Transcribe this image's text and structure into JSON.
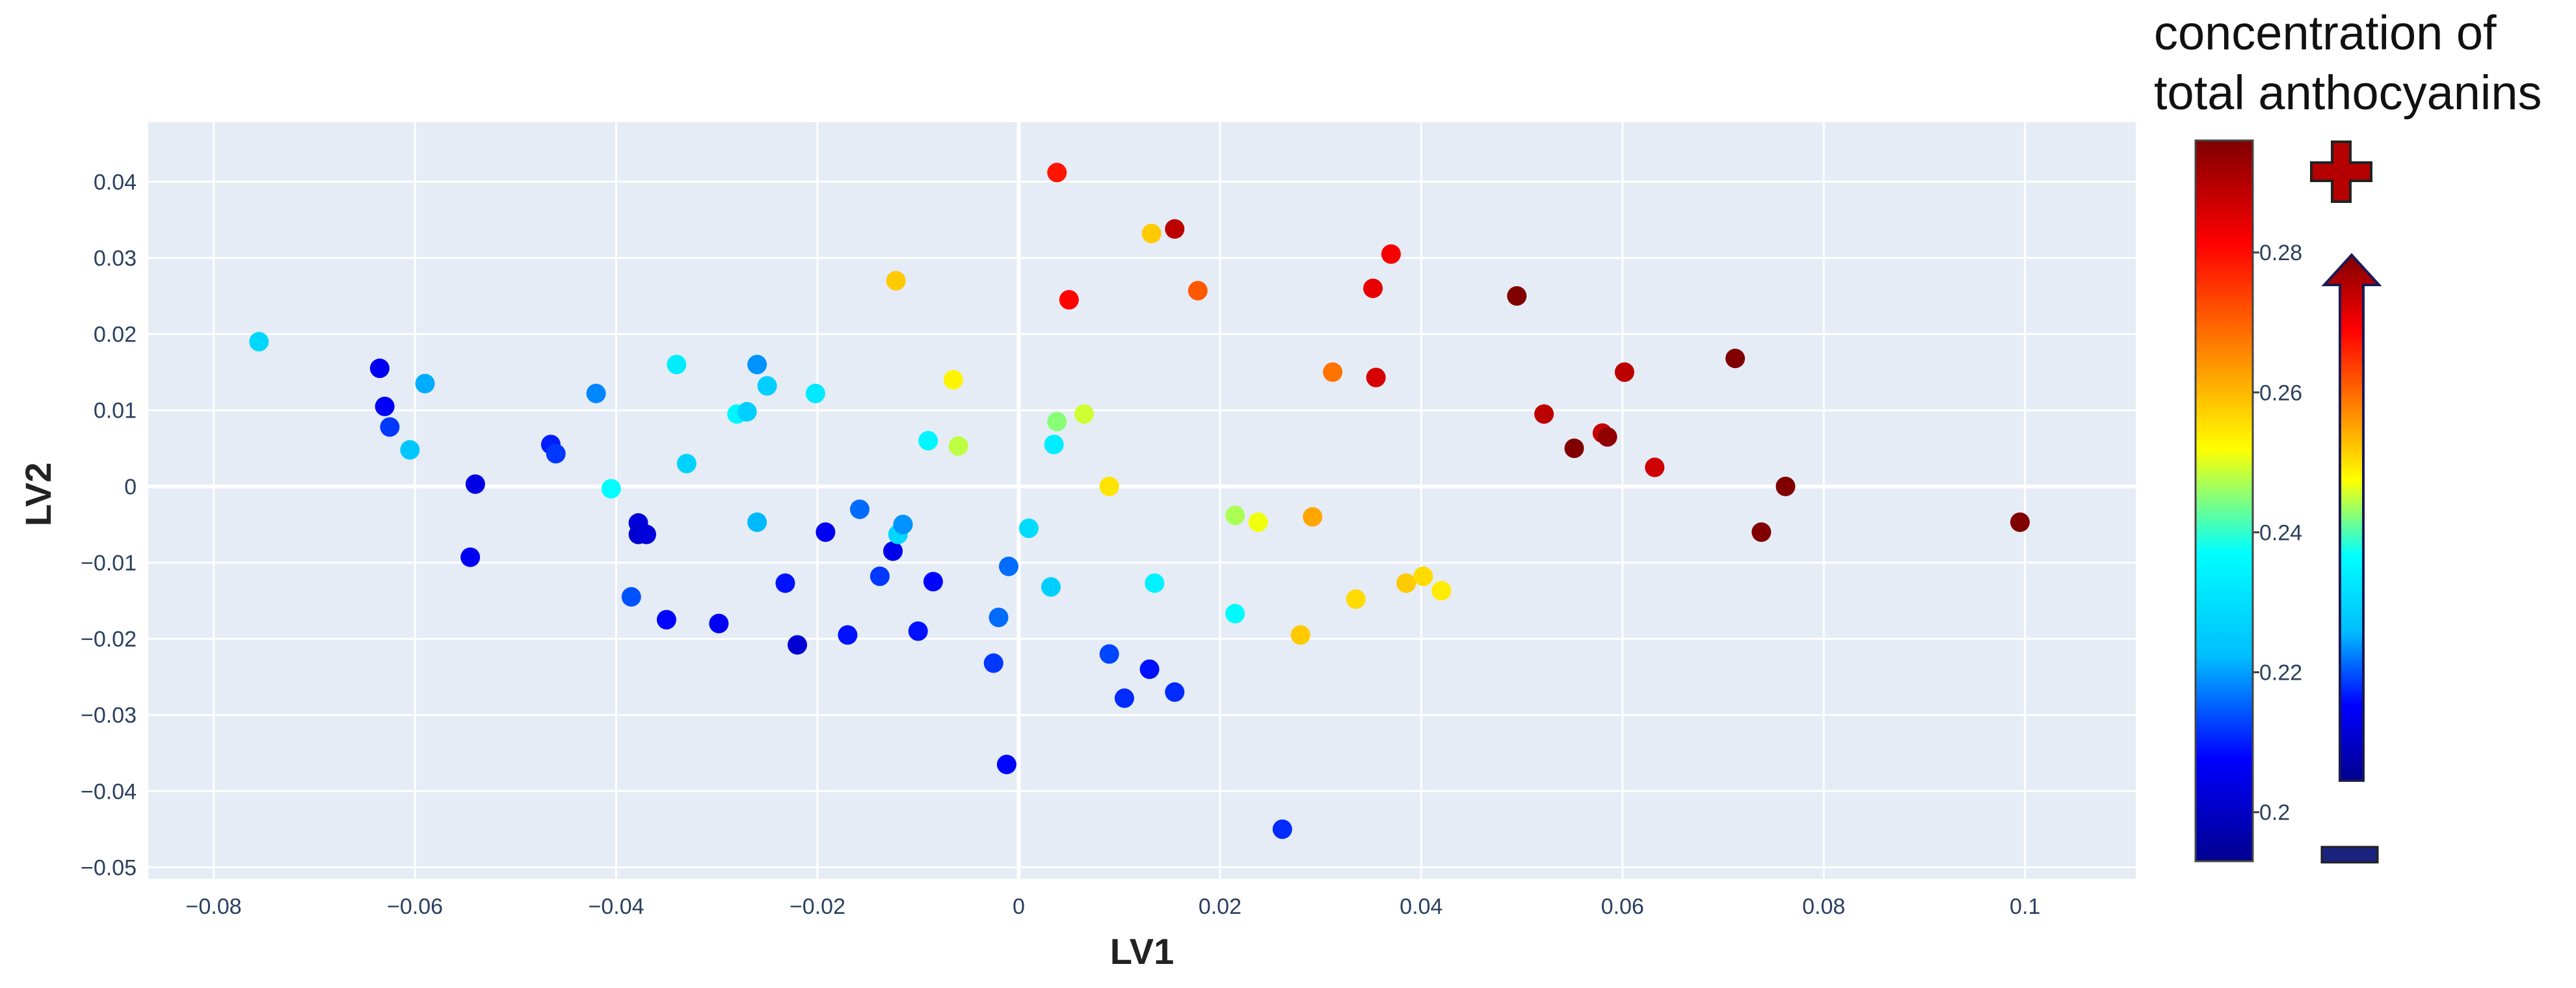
{
  "chart_data": {
    "type": "scatter",
    "title": "",
    "xlabel": "LV1",
    "ylabel": "LV2",
    "xlim": [
      -0.0865,
      0.111
    ],
    "ylim": [
      -0.0515,
      0.0478
    ],
    "grid": true,
    "x_ticks": [
      -0.08,
      -0.06,
      -0.04,
      -0.02,
      0,
      0.02,
      0.04,
      0.06,
      0.08,
      0.1
    ],
    "x_tick_labels": [
      "−0.08",
      "−0.06",
      "−0.04",
      "−0.02",
      "0",
      "0.02",
      "0.04",
      "0.06",
      "0.08",
      "0.1"
    ],
    "y_ticks": [
      0.04,
      0.03,
      0.02,
      0.01,
      0,
      -0.01,
      -0.02,
      -0.03,
      -0.04,
      -0.05
    ],
    "y_tick_labels": [
      "0.04",
      "0.03",
      "0.02",
      "0.01",
      "0",
      "−0.01",
      "−0.02",
      "−0.03",
      "−0.04",
      "−0.05"
    ],
    "colorbar": {
      "title_line1": "concentration of",
      "title_line2": "total anthocyanins",
      "range": [
        0.193,
        0.296
      ],
      "ticks": [
        0.2,
        0.22,
        0.24,
        0.26,
        0.28
      ],
      "tick_labels": [
        "0.2",
        "0.22",
        "0.24",
        "0.26",
        "0.28"
      ],
      "colorscale": [
        "#00008f",
        "#0000ff",
        "#00bfff",
        "#00ffff",
        "#ffff00",
        "#ff7f00",
        "#ff0000",
        "#800000"
      ],
      "plus_symbol": "+",
      "minus_symbol": "−"
    },
    "points": [
      {
        "x": -0.0755,
        "y": 0.019,
        "c": 0.228
      },
      {
        "x": -0.0635,
        "y": 0.0155,
        "c": 0.206
      },
      {
        "x": -0.063,
        "y": 0.0105,
        "c": 0.207
      },
      {
        "x": -0.0625,
        "y": 0.0078,
        "c": 0.212
      },
      {
        "x": -0.059,
        "y": 0.0135,
        "c": 0.221
      },
      {
        "x": -0.0605,
        "y": 0.0048,
        "c": 0.224
      },
      {
        "x": -0.054,
        "y": 0.0003,
        "c": 0.204
      },
      {
        "x": -0.0545,
        "y": -0.0093,
        "c": 0.206
      },
      {
        "x": -0.0465,
        "y": 0.0055,
        "c": 0.21
      },
      {
        "x": -0.046,
        "y": 0.0043,
        "c": 0.212
      },
      {
        "x": -0.042,
        "y": 0.0122,
        "c": 0.218
      },
      {
        "x": -0.0405,
        "y": -0.0003,
        "c": 0.237
      },
      {
        "x": -0.034,
        "y": 0.016,
        "c": 0.233
      },
      {
        "x": -0.0385,
        "y": -0.0145,
        "c": 0.214
      },
      {
        "x": -0.0378,
        "y": -0.0048,
        "c": 0.203
      },
      {
        "x": -0.0378,
        "y": -0.0063,
        "c": 0.201
      },
      {
        "x": -0.037,
        "y": -0.0063,
        "c": 0.203
      },
      {
        "x": -0.035,
        "y": -0.0175,
        "c": 0.208
      },
      {
        "x": -0.033,
        "y": 0.003,
        "c": 0.227
      },
      {
        "x": -0.0298,
        "y": -0.018,
        "c": 0.206
      },
      {
        "x": -0.028,
        "y": 0.0095,
        "c": 0.235
      },
      {
        "x": -0.027,
        "y": 0.0098,
        "c": 0.226
      },
      {
        "x": -0.026,
        "y": 0.016,
        "c": 0.219
      },
      {
        "x": -0.025,
        "y": 0.0132,
        "c": 0.226
      },
      {
        "x": -0.026,
        "y": -0.0047,
        "c": 0.222
      },
      {
        "x": -0.0232,
        "y": -0.0127,
        "c": 0.209
      },
      {
        "x": -0.022,
        "y": -0.0208,
        "c": 0.202
      },
      {
        "x": -0.0202,
        "y": 0.0122,
        "c": 0.232
      },
      {
        "x": -0.0192,
        "y": -0.006,
        "c": 0.206
      },
      {
        "x": -0.017,
        "y": -0.0195,
        "c": 0.209
      },
      {
        "x": -0.0158,
        "y": -0.003,
        "c": 0.216
      },
      {
        "x": -0.0138,
        "y": -0.0118,
        "c": 0.212
      },
      {
        "x": -0.0125,
        "y": -0.0085,
        "c": 0.205
      },
      {
        "x": -0.012,
        "y": -0.0063,
        "c": 0.228
      },
      {
        "x": -0.0115,
        "y": -0.005,
        "c": 0.219
      },
      {
        "x": -0.0122,
        "y": 0.027,
        "c": 0.258
      },
      {
        "x": -0.01,
        "y": -0.019,
        "c": 0.209
      },
      {
        "x": -0.0085,
        "y": -0.0125,
        "c": 0.208
      },
      {
        "x": -0.009,
        "y": 0.006,
        "c": 0.235
      },
      {
        "x": -0.0065,
        "y": 0.014,
        "c": 0.253
      },
      {
        "x": -0.006,
        "y": 0.0053,
        "c": 0.248
      },
      {
        "x": -0.0025,
        "y": -0.0232,
        "c": 0.212
      },
      {
        "x": -0.002,
        "y": -0.0172,
        "c": 0.216
      },
      {
        "x": -0.001,
        "y": -0.0105,
        "c": 0.216
      },
      {
        "x": -0.0012,
        "y": -0.0365,
        "c": 0.208
      },
      {
        "x": 0.001,
        "y": -0.0055,
        "c": 0.229
      },
      {
        "x": 0.0032,
        "y": -0.0132,
        "c": 0.226
      },
      {
        "x": 0.0035,
        "y": 0.0055,
        "c": 0.233
      },
      {
        "x": 0.0038,
        "y": 0.0085,
        "c": 0.245
      },
      {
        "x": 0.0038,
        "y": 0.0412,
        "c": 0.279
      },
      {
        "x": 0.005,
        "y": 0.0245,
        "c": 0.281
      },
      {
        "x": 0.0065,
        "y": 0.0095,
        "c": 0.249
      },
      {
        "x": 0.009,
        "y": -0.022,
        "c": 0.213
      },
      {
        "x": 0.009,
        "y": 0.0,
        "c": 0.255
      },
      {
        "x": 0.0105,
        "y": -0.0278,
        "c": 0.211
      },
      {
        "x": 0.013,
        "y": -0.024,
        "c": 0.209
      },
      {
        "x": 0.0132,
        "y": 0.0332,
        "c": 0.258
      },
      {
        "x": 0.0135,
        "y": -0.0127,
        "c": 0.234
      },
      {
        "x": 0.0155,
        "y": 0.0338,
        "c": 0.289
      },
      {
        "x": 0.0155,
        "y": -0.027,
        "c": 0.211
      },
      {
        "x": 0.0178,
        "y": 0.0257,
        "c": 0.271
      },
      {
        "x": 0.0215,
        "y": -0.0038,
        "c": 0.247
      },
      {
        "x": 0.0215,
        "y": -0.0167,
        "c": 0.236
      },
      {
        "x": 0.0238,
        "y": -0.0047,
        "c": 0.251
      },
      {
        "x": 0.0262,
        "y": -0.045,
        "c": 0.211
      },
      {
        "x": 0.028,
        "y": -0.0195,
        "c": 0.258
      },
      {
        "x": 0.0292,
        "y": -0.004,
        "c": 0.262
      },
      {
        "x": 0.0312,
        "y": 0.015,
        "c": 0.268
      },
      {
        "x": 0.0335,
        "y": -0.0148,
        "c": 0.256
      },
      {
        "x": 0.0352,
        "y": 0.026,
        "c": 0.284
      },
      {
        "x": 0.0355,
        "y": 0.0143,
        "c": 0.286
      },
      {
        "x": 0.037,
        "y": 0.0305,
        "c": 0.282
      },
      {
        "x": 0.0385,
        "y": -0.0127,
        "c": 0.258
      },
      {
        "x": 0.0402,
        "y": -0.0118,
        "c": 0.256
      },
      {
        "x": 0.042,
        "y": -0.0137,
        "c": 0.254
      },
      {
        "x": 0.0495,
        "y": 0.025,
        "c": 0.296
      },
      {
        "x": 0.0522,
        "y": 0.0095,
        "c": 0.289
      },
      {
        "x": 0.0552,
        "y": 0.005,
        "c": 0.296
      },
      {
        "x": 0.058,
        "y": 0.007,
        "c": 0.288
      },
      {
        "x": 0.0585,
        "y": 0.0065,
        "c": 0.294
      },
      {
        "x": 0.0602,
        "y": 0.015,
        "c": 0.289
      },
      {
        "x": 0.0632,
        "y": 0.0025,
        "c": 0.287
      },
      {
        "x": 0.0712,
        "y": 0.0168,
        "c": 0.296
      },
      {
        "x": 0.0738,
        "y": -0.006,
        "c": 0.296
      },
      {
        "x": 0.0762,
        "y": 0.0,
        "c": 0.296
      },
      {
        "x": 0.0995,
        "y": -0.0047,
        "c": 0.296
      }
    ]
  }
}
